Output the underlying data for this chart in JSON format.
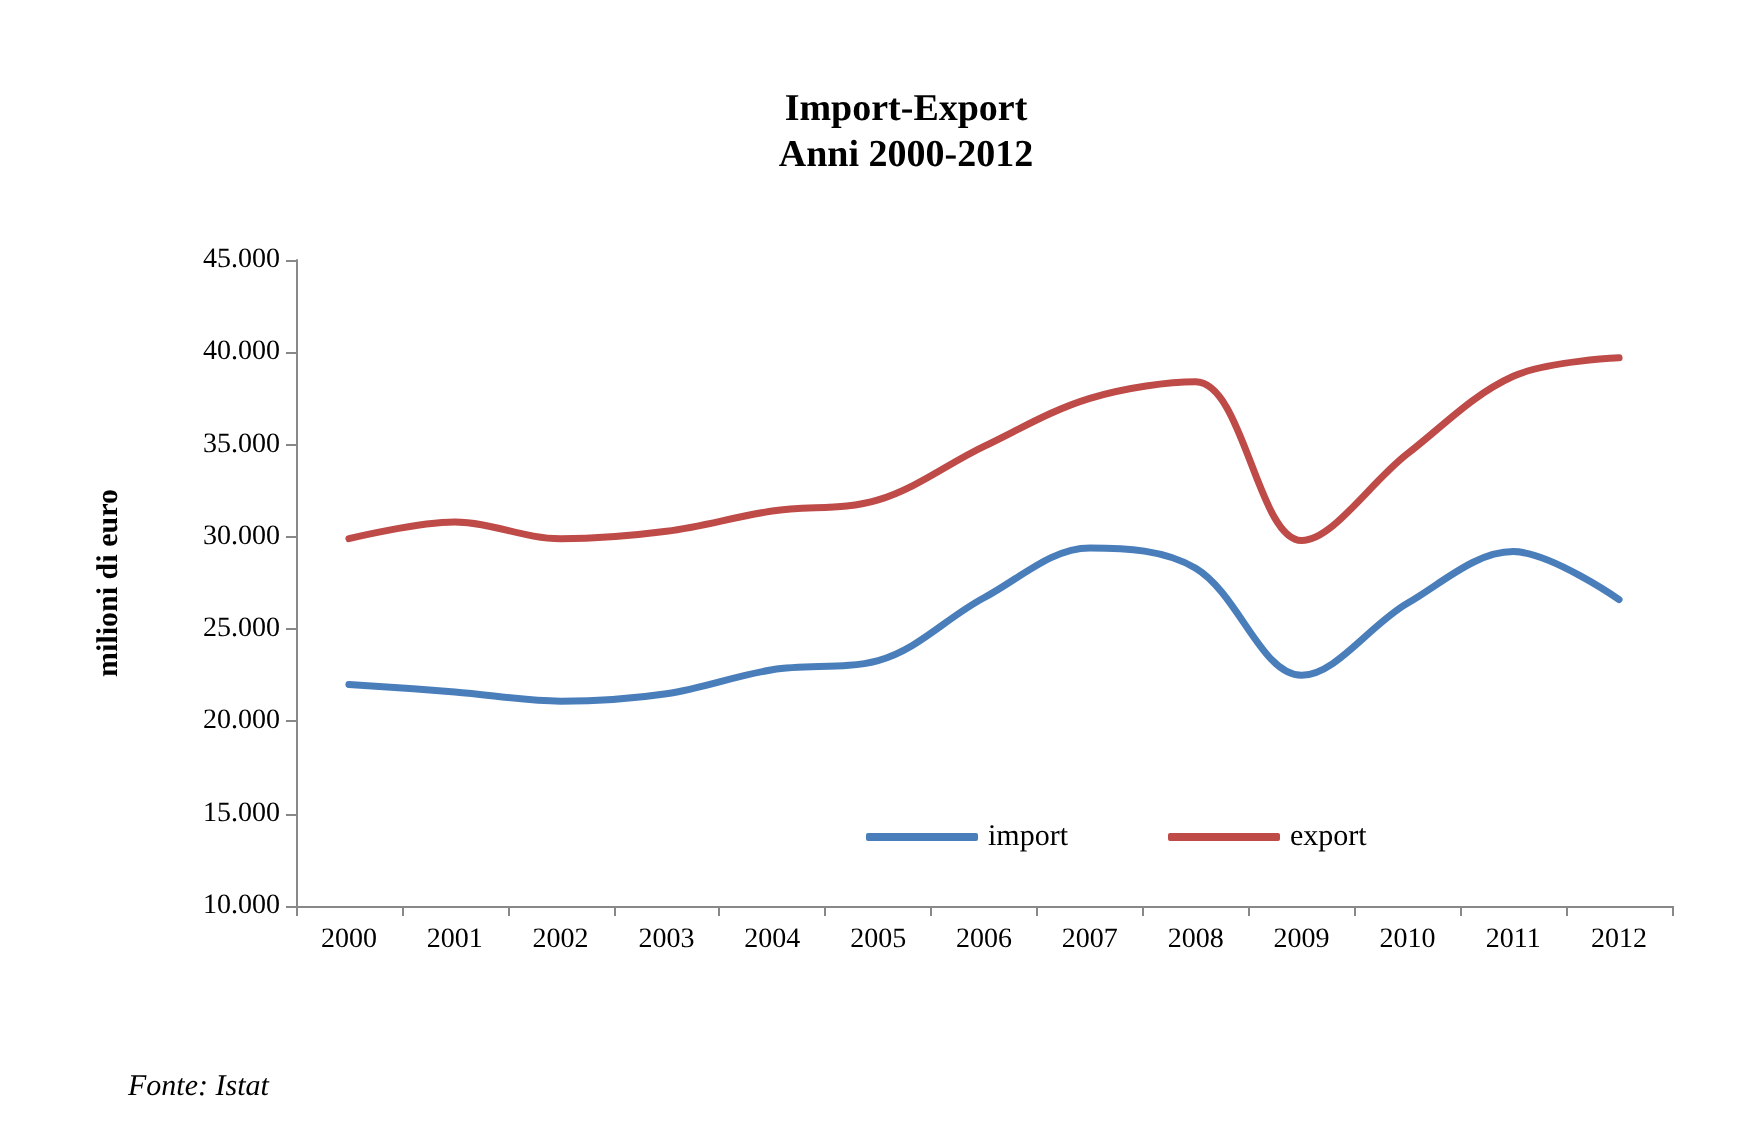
{
  "chart_data": {
    "type": "line",
    "title": "Import-Export\nAnni 2000-2012",
    "ylabel": "milioni di euro",
    "categories": [
      "2000",
      "2001",
      "2002",
      "2003",
      "2004",
      "2005",
      "2006",
      "2007",
      "2008",
      "2009",
      "2010",
      "2011",
      "2012"
    ],
    "series": [
      {
        "name": "import",
        "color": "#4a7ebb",
        "values": [
          22000,
          21600,
          21100,
          21500,
          22800,
          23300,
          26700,
          29400,
          28300,
          22500,
          26400,
          29200,
          26600
        ]
      },
      {
        "name": "export",
        "color": "#be4b48",
        "values": [
          29900,
          30800,
          29900,
          30300,
          31400,
          32000,
          34900,
          37500,
          38400,
          29800,
          34500,
          38700,
          39700
        ]
      }
    ],
    "ylim": [
      10000,
      45000
    ],
    "yticks": [
      {
        "value": 10000,
        "label": "10.000"
      },
      {
        "value": 15000,
        "label": "15.000"
      },
      {
        "value": 20000,
        "label": "20.000"
      },
      {
        "value": 25000,
        "label": "25.000"
      },
      {
        "value": 30000,
        "label": "30.000"
      },
      {
        "value": 35000,
        "label": "35.000"
      },
      {
        "value": 40000,
        "label": "40.000"
      },
      {
        "value": 45000,
        "label": "45.000"
      }
    ],
    "grid": false,
    "legend": "bottom",
    "marker": "none",
    "line_style": "solid",
    "annotations": [
      "Fonte: Istat"
    ]
  }
}
